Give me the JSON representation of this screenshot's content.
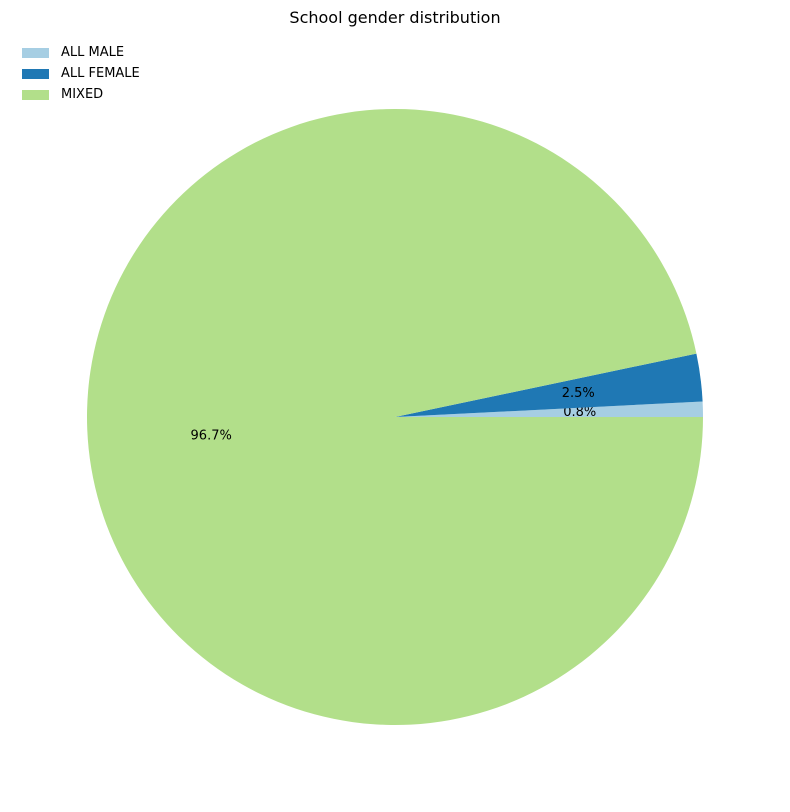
{
  "chart_data": {
    "type": "pie",
    "title": "School gender distribution",
    "slices": [
      {
        "label": "ALL MALE",
        "value": 0.8,
        "pct_label": "0.8%",
        "color": "#a6cee3"
      },
      {
        "label": "ALL FEMALE",
        "value": 2.5,
        "pct_label": "2.5%",
        "color": "#1f78b4"
      },
      {
        "label": "MIXED",
        "value": 96.7,
        "pct_label": "96.7%",
        "color": "#b2df8a"
      }
    ],
    "legend_position": "top-left",
    "start_angle_deg": 0,
    "direction": "counterclockwise"
  }
}
